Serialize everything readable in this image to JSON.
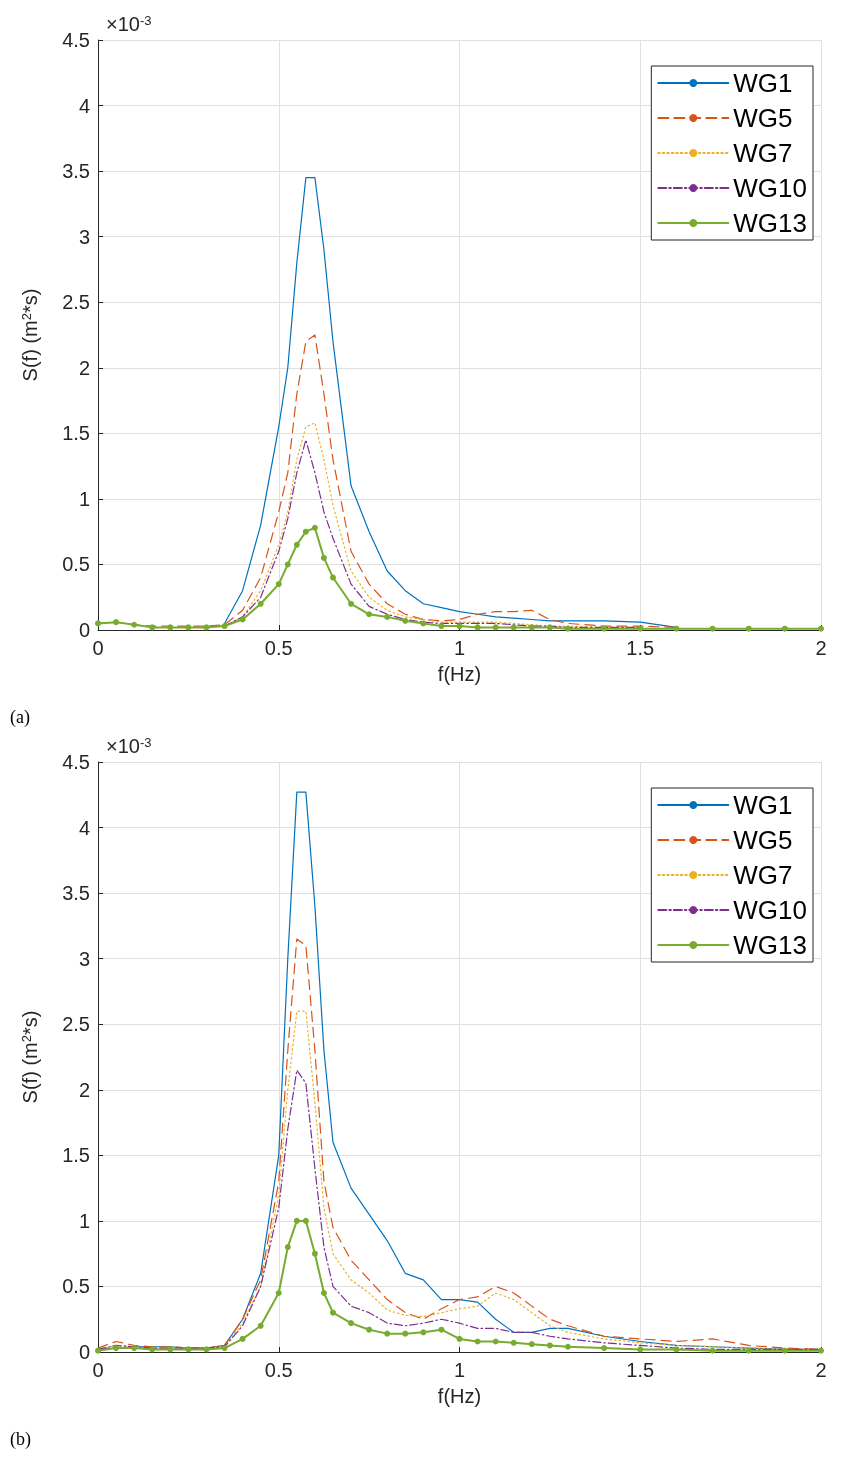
{
  "chart_data": [
    {
      "type": "line",
      "xlabel": "f(Hz)",
      "ylabel": "S(f) (m$^{2}$*s)",
      "annotations": [
        "×10$^{-3}$",
        "(a)"
      ],
      "xlim": [
        0,
        2
      ],
      "xticks": [
        0,
        0.5,
        1,
        1.5,
        2
      ],
      "ylim": [
        0,
        4.5
      ],
      "yticks": [
        0,
        0.5,
        1,
        1.5,
        2,
        2.5,
        3,
        3.5,
        4,
        4.5
      ],
      "grid": true,
      "legend": "top right",
      "x": [
        0,
        0.05,
        0.1,
        0.15,
        0.2,
        0.25,
        0.3,
        0.35,
        0.4,
        0.45,
        0.5,
        0.525,
        0.55,
        0.575,
        0.6,
        0.625,
        0.65,
        0.7,
        0.75,
        0.8,
        0.85,
        0.9,
        0.95,
        1,
        1.05,
        1.1,
        1.15,
        1.2,
        1.25,
        1.3,
        1.4,
        1.5,
        1.6,
        1.7,
        1.8,
        1.9,
        2
      ],
      "series": [
        {
          "name": "WG1",
          "color": "#0072bd",
          "line_style": "solid",
          "values": [
            null,
            null,
            null,
            null,
            null,
            null,
            null,
            0.05,
            0.3,
            0.8,
            1.55,
            2.0,
            2.8,
            3.45,
            3.45,
            2.9,
            2.2,
            1.1,
            0.75,
            0.45,
            0.3,
            0.2,
            0.17,
            0.14,
            0.12,
            0.1,
            0.09,
            0.08,
            0.07,
            0.07,
            0.07,
            0.06,
            0.02,
            null,
            null,
            null,
            null
          ]
        },
        {
          "name": "WG5",
          "color": "#d95319",
          "line_style": "dashed",
          "values": [
            0.05,
            0.06,
            0.04,
            0.03,
            0.03,
            0.03,
            0.03,
            0.04,
            0.15,
            0.4,
            0.9,
            1.2,
            1.8,
            2.2,
            2.25,
            1.8,
            1.3,
            0.6,
            0.35,
            0.2,
            0.12,
            0.08,
            0.07,
            0.08,
            0.12,
            0.14,
            0.14,
            0.15,
            0.08,
            0.05,
            0.03,
            0.03,
            0.02,
            null,
            null,
            null,
            null
          ]
        },
        {
          "name": "WG7",
          "color": "#edb120",
          "line_style": "dotted",
          "values": [
            null,
            null,
            null,
            null,
            null,
            null,
            null,
            0.03,
            0.1,
            0.3,
            0.65,
            0.9,
            1.3,
            1.55,
            1.58,
            1.3,
            0.95,
            0.45,
            0.25,
            0.15,
            0.1,
            0.08,
            0.06,
            0.06,
            0.06,
            0.06,
            0.05,
            0.04,
            0.03,
            0.03,
            0.02,
            0.02,
            null,
            null,
            null,
            null,
            null
          ]
        },
        {
          "name": "WG10",
          "color": "#7e2f8e",
          "line_style": "dashdot",
          "values": [
            null,
            null,
            null,
            null,
            null,
            null,
            null,
            0.03,
            0.1,
            0.25,
            0.6,
            0.85,
            1.2,
            1.45,
            1.2,
            0.9,
            0.7,
            0.35,
            0.18,
            0.12,
            0.08,
            0.06,
            0.05,
            0.05,
            0.05,
            0.05,
            0.04,
            0.03,
            0.03,
            0.02,
            0.02,
            0.02,
            null,
            null,
            null,
            null,
            null
          ]
        },
        {
          "name": "WG13",
          "color": "#77ac30",
          "line_style": "solid",
          "marker": "circle",
          "values": [
            0.05,
            0.06,
            0.04,
            0.02,
            0.02,
            0.02,
            0.02,
            0.03,
            0.08,
            0.2,
            0.35,
            0.5,
            0.65,
            0.75,
            0.78,
            0.55,
            0.4,
            0.2,
            0.12,
            0.1,
            0.07,
            0.05,
            0.03,
            0.03,
            0.02,
            0.02,
            0.02,
            0.02,
            0.02,
            0.01,
            0.01,
            0.01,
            0.01,
            0.01,
            0.01,
            0.01,
            0.01
          ]
        }
      ]
    },
    {
      "type": "line",
      "xlabel": "f(Hz)",
      "ylabel": "S(f) (m$^{2}$*s)",
      "annotations": [
        "×10$^{-3}$",
        "(b)"
      ],
      "xlim": [
        0,
        2
      ],
      "xticks": [
        0,
        0.5,
        1,
        1.5,
        2
      ],
      "ylim": [
        0,
        4.5
      ],
      "yticks": [
        0,
        0.5,
        1,
        1.5,
        2,
        2.5,
        3,
        3.5,
        4,
        4.5
      ],
      "grid": true,
      "legend": "top right",
      "x": [
        0,
        0.05,
        0.1,
        0.15,
        0.2,
        0.25,
        0.3,
        0.35,
        0.4,
        0.45,
        0.5,
        0.525,
        0.55,
        0.575,
        0.6,
        0.625,
        0.65,
        0.7,
        0.75,
        0.8,
        0.85,
        0.9,
        0.95,
        1,
        1.05,
        1.1,
        1.15,
        1.2,
        1.25,
        1.3,
        1.4,
        1.5,
        1.6,
        1.7,
        1.8,
        1.9,
        2
      ],
      "series": [
        {
          "name": "WG1",
          "color": "#0072bd",
          "line_style": "solid",
          "values": [
            0.02,
            0.03,
            0.04,
            0.04,
            0.04,
            0.03,
            0.03,
            0.05,
            0.25,
            0.6,
            1.5,
            3.0,
            4.27,
            4.27,
            3.4,
            2.3,
            1.6,
            1.25,
            1.05,
            0.85,
            0.6,
            0.55,
            0.4,
            0.4,
            0.38,
            0.25,
            0.15,
            0.15,
            0.18,
            0.18,
            0.12,
            0.08,
            0.05,
            0.04,
            0.03,
            0.02,
            0.02
          ]
        },
        {
          "name": "WG5",
          "color": "#d95319",
          "line_style": "dashed",
          "values": [
            0.03,
            0.08,
            0.05,
            0.04,
            0.04,
            0.03,
            0.03,
            0.05,
            0.25,
            0.55,
            1.3,
            2.3,
            3.15,
            3.1,
            2.3,
            1.3,
            0.95,
            0.7,
            0.55,
            0.4,
            0.3,
            0.25,
            0.33,
            0.4,
            0.42,
            0.5,
            0.45,
            0.35,
            0.25,
            0.2,
            0.12,
            0.1,
            0.08,
            0.1,
            0.05,
            0.03,
            0.02
          ]
        },
        {
          "name": "WG7",
          "color": "#edb120",
          "line_style": "dotted",
          "values": [
            0.02,
            0.05,
            0.04,
            0.03,
            0.03,
            0.03,
            0.03,
            0.04,
            0.22,
            0.5,
            1.2,
            2.0,
            2.6,
            2.6,
            1.9,
            1.1,
            0.75,
            0.55,
            0.45,
            0.32,
            0.28,
            0.27,
            0.3,
            0.33,
            0.35,
            0.45,
            0.4,
            0.3,
            0.2,
            0.15,
            0.1,
            0.07,
            0.05,
            0.04,
            0.03,
            0.02,
            0.02
          ]
        },
        {
          "name": "WG10",
          "color": "#7e2f8e",
          "line_style": "dashdot",
          "values": [
            0.02,
            0.05,
            0.04,
            0.03,
            0.03,
            0.03,
            0.03,
            0.04,
            0.2,
            0.5,
            1.1,
            1.7,
            2.15,
            2.05,
            1.4,
            0.8,
            0.5,
            0.35,
            0.3,
            0.22,
            0.2,
            0.22,
            0.25,
            0.22,
            0.18,
            0.18,
            0.15,
            0.15,
            0.12,
            0.1,
            0.07,
            0.05,
            0.03,
            0.02,
            0.02,
            0.02,
            0.02
          ]
        },
        {
          "name": "WG13",
          "color": "#77ac30",
          "line_style": "solid",
          "marker": "circle",
          "values": [
            0.01,
            0.03,
            0.03,
            0.02,
            0.02,
            0.02,
            0.02,
            0.03,
            0.1,
            0.2,
            0.45,
            0.8,
            1.0,
            1.0,
            0.75,
            0.45,
            0.3,
            0.22,
            0.17,
            0.14,
            0.14,
            0.15,
            0.17,
            0.1,
            0.08,
            0.08,
            0.07,
            0.06,
            0.05,
            0.04,
            0.03,
            0.02,
            0.02,
            0.01,
            0.01,
            0.01,
            0.01
          ]
        }
      ]
    }
  ]
}
